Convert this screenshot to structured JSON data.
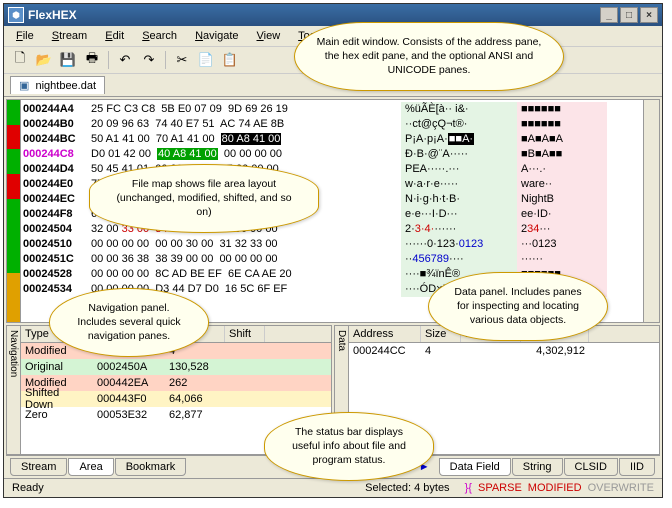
{
  "window": {
    "title": "FlexHEX"
  },
  "menus": [
    "File",
    "Stream",
    "Edit",
    "Search",
    "Navigate",
    "View",
    "Tools",
    "Window",
    "Help"
  ],
  "toolbar_icons": [
    {
      "n": "new-icon",
      "g": "🗋"
    },
    {
      "n": "open-icon",
      "g": "📂"
    },
    {
      "n": "save-icon",
      "g": "💾"
    },
    {
      "n": "print-icon",
      "g": "🖶"
    },
    {
      "sep": true
    },
    {
      "n": "undo-icon",
      "g": "↶"
    },
    {
      "n": "redo-icon",
      "g": "↷"
    },
    {
      "sep": true
    },
    {
      "n": "cut-icon",
      "g": "✂"
    },
    {
      "n": "copy-icon",
      "g": "📄"
    },
    {
      "n": "paste-icon",
      "g": "📋"
    }
  ],
  "file_tab": {
    "name": "nightbee.dat"
  },
  "filemap_colors": [
    "#00b000",
    "#e00000",
    "#00b000",
    "#e00000",
    "#00b000",
    "#00b000",
    "#00b000",
    "#e0a000",
    "#e0a000"
  ],
  "hex": {
    "rows": [
      {
        "a": "000244A4",
        "h": "25 FC C3 C8  5B E0 07 09  9D 69 26 19",
        "an": "%üÃÈ[à·· i&·",
        "u": "■■■■■■"
      },
      {
        "a": "000244B0",
        "h": "20 09 96 63  74 40 E7 51  AC 74 AE 8B",
        "an": "··ct@çQ¬t®·",
        "u": "■■■■■■"
      },
      {
        "a": "000244BC",
        "h": "50 A1 41 00  70 A1 41 00  ",
        "inv": "80 A8 41 00",
        "an": "P¡A·p¡A·",
        "ansi_inv": "■■A·",
        "u": "■A■A■A"
      },
      {
        "a": "000244C8",
        "amod": true,
        "h": "D0 01 42 00  ",
        "mod": "40 A8 41 00",
        "h2": "  00 00 00 00",
        "an": "Ð·B·@¨A·····",
        "u": "■B■A■■"
      },
      {
        "a": "000244D4",
        "h": "50 45 41 01  00 00 00 00  2E 00 00 00",
        "an": "PEA·····.···",
        "u": "A···.·"
      },
      {
        "a": "000244E0",
        "h": "77 00 61 00  72 00 65 00  ",
        "sel": "00 00",
        "h2": " 00 00",
        "an": "w·a·r·e·····",
        "an_sel": true,
        "u": "ware··"
      },
      {
        "a": "000244EC",
        "h": "4E 00 69 00  67 00 68 00  74 00 42 00",
        "an": "N·i·g·h·t·B·",
        "u": "NightB"
      },
      {
        "a": "000244F8",
        "h": "65 00 65 00  00 00 49 00  44 00 00 00",
        "an": "e·e···I·D···",
        "u": "ee·ID·"
      },
      {
        "a": "00024504",
        "h": "32 00 ",
        "red": "33 00  34 00",
        "h2": "  00 00 00 00 00 00",
        "an": "2·",
        "an_red": "3·4·",
        "an2": "······",
        "u": "2",
        "u_red": "34",
        "u2": "···"
      },
      {
        "a": "00024510",
        "h": "00 00 00 00  00 00 30 00  31 32 33 00",
        "an": "······0·123·",
        "an_blue": "0123",
        "u": "···0123"
      },
      {
        "a": "0002451C",
        "h": "00 00 36 38  38 39 00 00  00 00 00 00",
        "an": "··",
        "an_blue": "456789",
        "an2": "····",
        "u": "······"
      },
      {
        "a": "00024528",
        "h": "00 00 00 00  8C AD BE EF  6E CA AE 20",
        "an": "····■­¾ïnÊ® ",
        "u": "■■■■■■"
      },
      {
        "a": "00024534",
        "h": "00 00 00 00  D3 44 D7 D0  16 5C 6F EF",
        "an": "····ÓD×Ð·\\oï",
        "u": "■■■■■■"
      }
    ]
  },
  "nav_panel": {
    "headers": [
      {
        "t": "Type",
        "w": 72
      },
      {
        "t": "Start",
        "w": 72
      },
      {
        "t": "Size",
        "w": 60
      },
      {
        "t": "Shift",
        "w": 40
      }
    ],
    "rows": [
      {
        "t": "Modified",
        "s": "00024506",
        "z": "4",
        "bg": "#ffd4c4"
      },
      {
        "t": "Original",
        "s": "0002450A",
        "z": "130,528",
        "bg": "#d4f4d4"
      },
      {
        "t": "Modified",
        "s": "000442EA",
        "z": "262",
        "bg": "#ffd4c4"
      },
      {
        "t": "Shifted Down",
        "s": "000443F0",
        "z": "64,066",
        "bg": "#fff4c4"
      },
      {
        "t": "Zero",
        "s": "00053E32",
        "z": "62,877",
        "bg": "#ffffff"
      }
    ],
    "tabs": [
      "Stream",
      "Area",
      "Bookmark"
    ],
    "active_tab": 1,
    "vlabel": "Navigation"
  },
  "data_panel": {
    "headers": [
      {
        "t": "Address",
        "w": 72
      },
      {
        "t": "Size",
        "w": 40
      },
      {
        "t": "Name",
        "w": 60
      },
      {
        "t": "Value",
        "w": 68
      }
    ],
    "rows": [
      {
        "a": "000244CC",
        "s": "4",
        "n": "",
        "v": "4,302,912"
      }
    ],
    "tabs": [
      "Data Field",
      "String",
      "CLSID",
      "IID"
    ],
    "active_tab": 0,
    "vlabel": "Data",
    "nav_ctrl": "◄◄ ◄ ► ►►"
  },
  "status": {
    "left": "Ready",
    "selected": "Selected: 4 bytes",
    "flags": [
      {
        "t": "}{",
        "c": "#c0c"
      },
      {
        "t": "SPARSE",
        "c": "#c00"
      },
      {
        "t": "MODIFIED",
        "c": "#c00"
      },
      {
        "t": "OVERWRITE",
        "c": "#999"
      }
    ]
  },
  "callouts": {
    "main_edit": "Main edit window.\nConsists of the address pane, the hex edit pane,\nand the optional ANSI and UNICODE panes.",
    "filemap": "File map shows file area layout\n(unchanged, modified, shifted, and so on)",
    "nav": "Navigation panel.\nIncludes several quick\nnavigation panes.",
    "data": "Data panel.\nIncludes panes for inspecting\nand locating various data\nobjects.",
    "status": "The status bar displays\nuseful info about file and\nprogram status."
  }
}
